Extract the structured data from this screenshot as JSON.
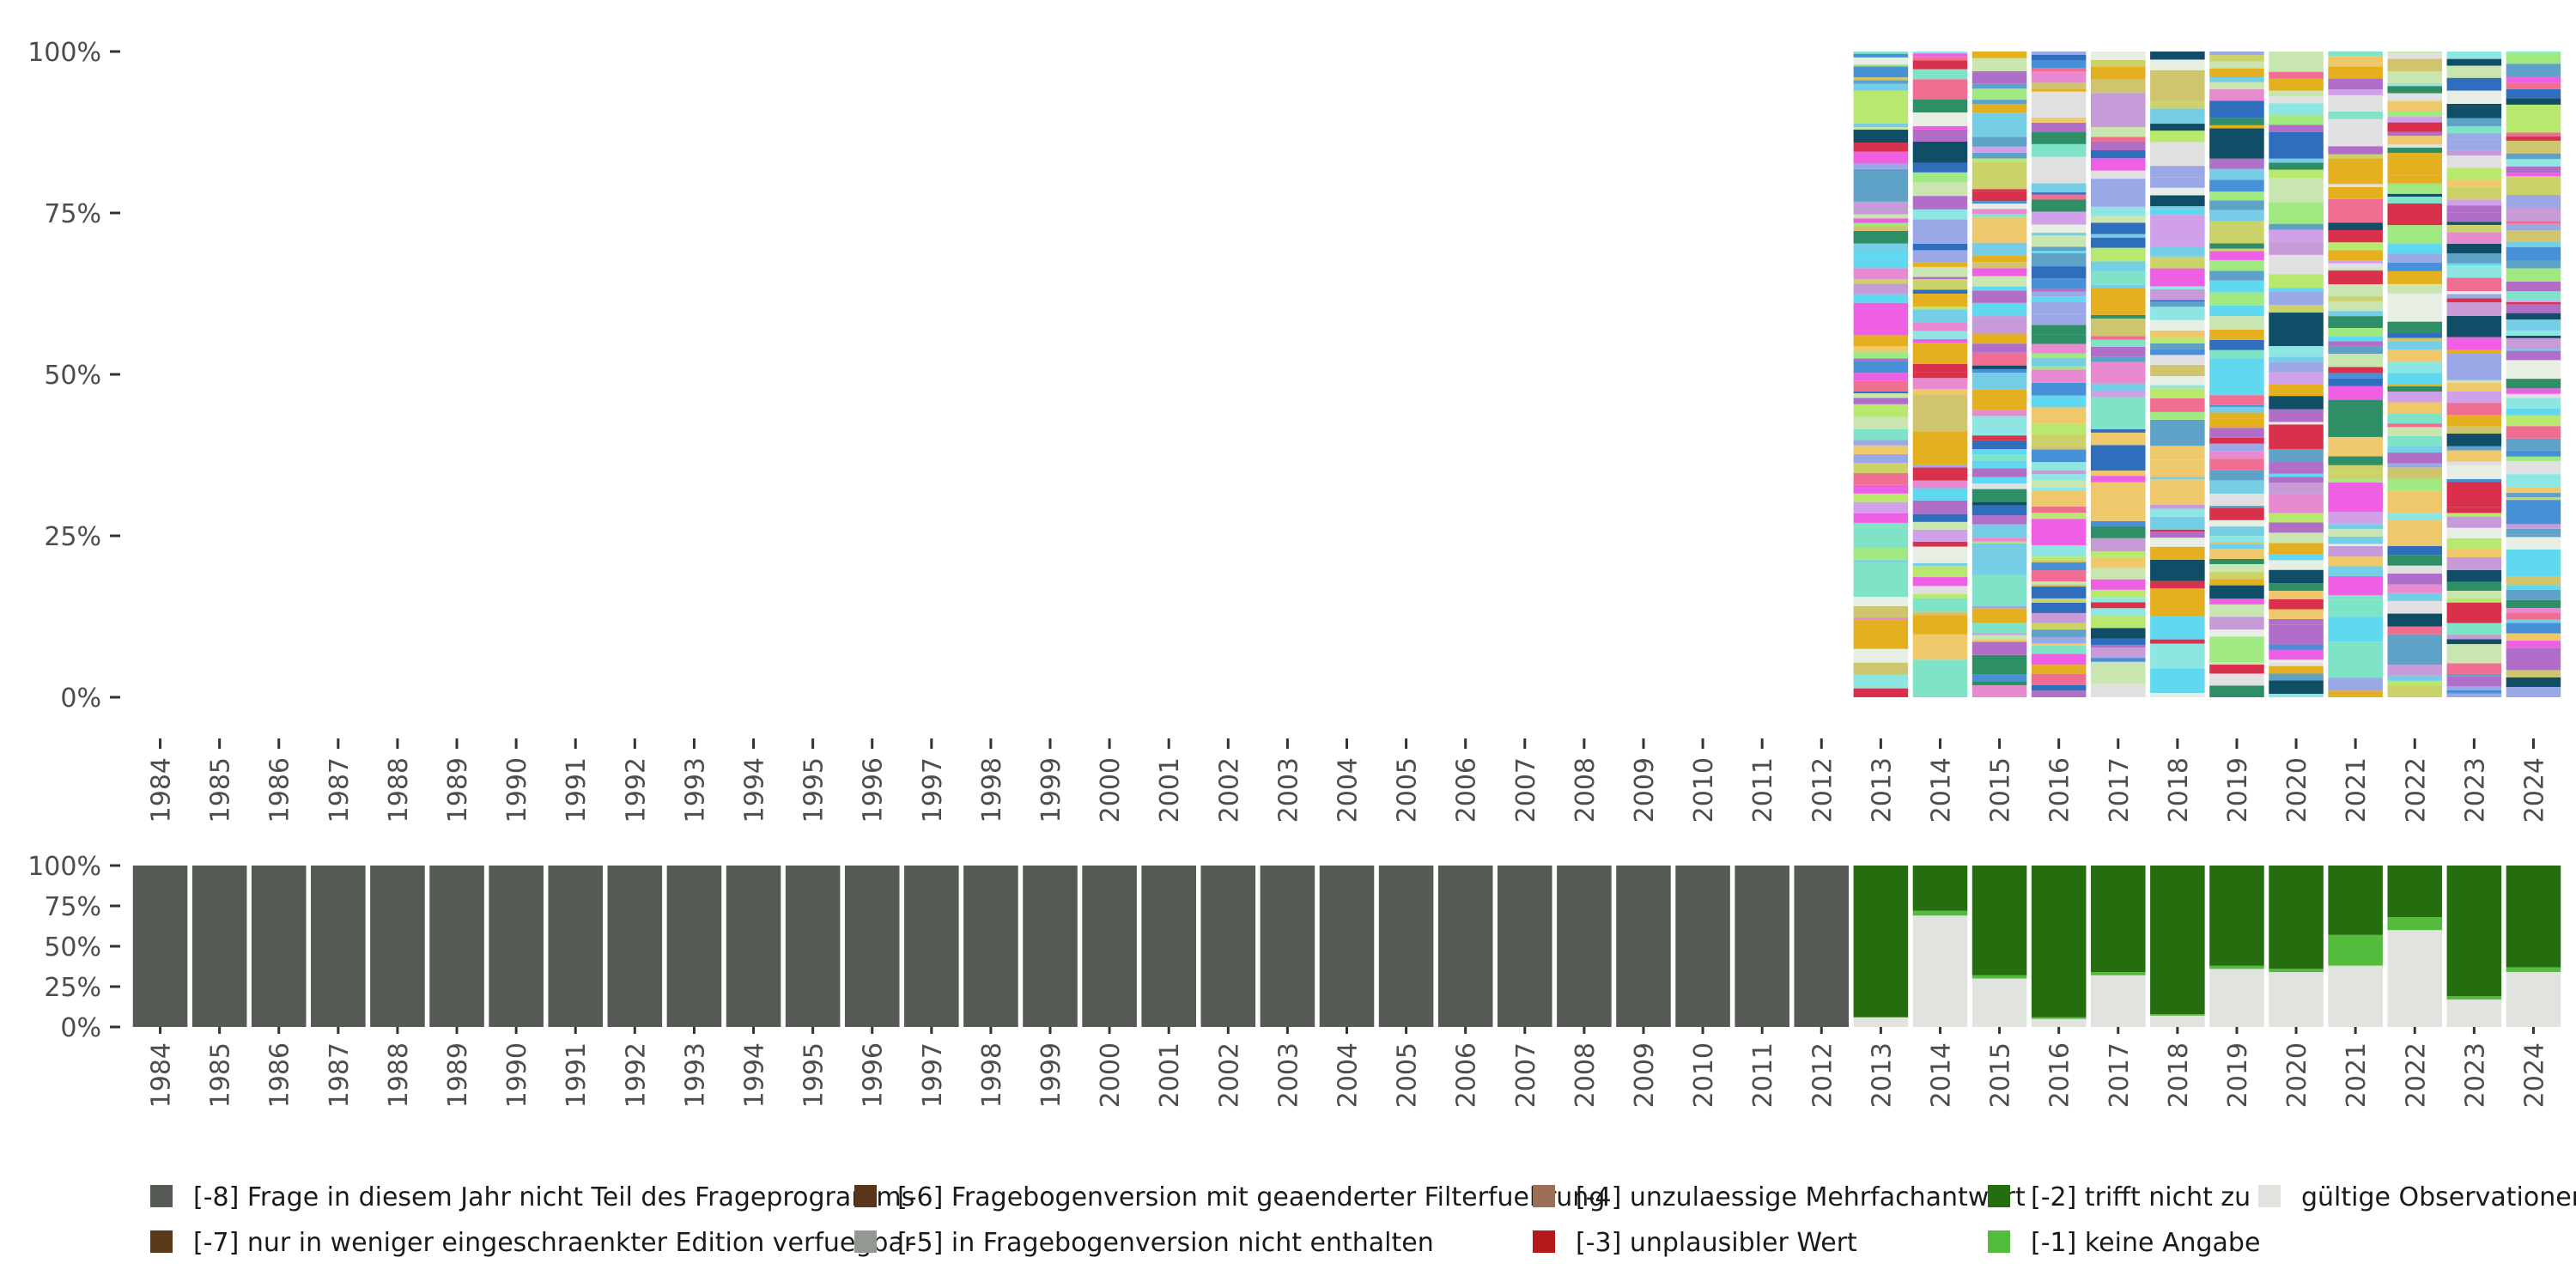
{
  "chart_data": [
    {
      "type": "stacked-bar",
      "y_tick_labels": [
        "0%",
        "25%",
        "50%",
        "75%",
        "100%"
      ],
      "ylim": [
        0,
        100
      ],
      "categories": [
        "1984",
        "1985",
        "1986",
        "1987",
        "1988",
        "1989",
        "1990",
        "1991",
        "1992",
        "1993",
        "1994",
        "1995",
        "1996",
        "1997",
        "1998",
        "1999",
        "2000",
        "2001",
        "2002",
        "2003",
        "2004",
        "2005",
        "2006",
        "2007",
        "2008",
        "2009",
        "2010",
        "2011",
        "2012",
        "2013",
        "2014",
        "2015",
        "2016",
        "2017",
        "2018",
        "2019",
        "2020",
        "2021",
        "2022",
        "2023",
        "2024"
      ],
      "bars_present_from": "2013",
      "note_bars": "many thin colored segments for 2013-2024, each bar sums to 100%"
    },
    {
      "type": "stacked-bar",
      "y_tick_labels": [
        "0%",
        "25%",
        "50%",
        "75%",
        "100%"
      ],
      "ylim": [
        0,
        100
      ],
      "categories": [
        "1984",
        "1985",
        "1986",
        "1987",
        "1988",
        "1989",
        "1990",
        "1991",
        "1992",
        "1993",
        "1994",
        "1995",
        "1996",
        "1997",
        "1998",
        "1999",
        "2000",
        "2001",
        "2002",
        "2003",
        "2004",
        "2005",
        "2006",
        "2007",
        "2008",
        "2009",
        "2010",
        "2011",
        "2012",
        "2013",
        "2014",
        "2015",
        "2016",
        "2017",
        "2018",
        "2019",
        "2020",
        "2021",
        "2022",
        "2023",
        "2024"
      ],
      "series": [
        {
          "name": "[-8] Frage in diesem Jahr nicht Teil des Frageprogramms",
          "color": "#555a54",
          "values": [
            100,
            100,
            100,
            100,
            100,
            100,
            100,
            100,
            100,
            100,
            100,
            100,
            100,
            100,
            100,
            100,
            100,
            100,
            100,
            100,
            100,
            100,
            100,
            100,
            100,
            100,
            100,
            100,
            100,
            0,
            0,
            0,
            0,
            0,
            0,
            0,
            0,
            0,
            0,
            0,
            0
          ]
        },
        {
          "name": "gültige Observationen",
          "color": "#e0e3de",
          "values": [
            0,
            0,
            0,
            0,
            0,
            0,
            0,
            0,
            0,
            0,
            0,
            0,
            0,
            0,
            0,
            0,
            0,
            0,
            0,
            0,
            0,
            0,
            0,
            0,
            0,
            0,
            0,
            0,
            0,
            6,
            69,
            30,
            5,
            32,
            7,
            36,
            34,
            38,
            60,
            17,
            34
          ]
        },
        {
          "name": "[-1] keine Angabe",
          "color": "#54bc3c",
          "values": [
            0,
            0,
            0,
            0,
            0,
            0,
            0,
            0,
            0,
            0,
            0,
            0,
            0,
            0,
            0,
            0,
            0,
            0,
            0,
            0,
            0,
            0,
            0,
            0,
            0,
            0,
            0,
            0,
            0,
            0,
            3,
            2,
            1,
            2,
            1,
            2,
            2,
            19,
            8,
            2,
            3
          ]
        },
        {
          "name": "[-2] trifft nicht zu",
          "color": "#246e10",
          "values": [
            0,
            0,
            0,
            0,
            0,
            0,
            0,
            0,
            0,
            0,
            0,
            0,
            0,
            0,
            0,
            0,
            0,
            0,
            0,
            0,
            0,
            0,
            0,
            0,
            0,
            0,
            0,
            0,
            0,
            94,
            28,
            68,
            94,
            66,
            92,
            62,
            64,
            43,
            32,
            81,
            63
          ]
        }
      ]
    }
  ],
  "legend": [
    {
      "label": "[-8] Frage in diesem Jahr nicht Teil des Frageprogramms",
      "color": "#555a54"
    },
    {
      "label": "[-7] nur in weniger eingeschraenkter Edition verfuegbar",
      "color": "#5a3a1a"
    },
    {
      "label": "[-6] Fragebogenversion mit geaenderter Filterfuehrung",
      "color": "#5c3419"
    },
    {
      "label": "[-5] in Fragebogenversion nicht enthalten",
      "color": "#929892"
    },
    {
      "label": "[-4] unzulaessige Mehrfachantwort",
      "color": "#9b6f55"
    },
    {
      "label": "[-3] unplausibler Wert",
      "color": "#b5191b"
    },
    {
      "label": "[-2] trifft nicht zu",
      "color": "#246e10"
    },
    {
      "label": "[-1] keine Angabe",
      "color": "#54bc3c"
    },
    {
      "label": "gültige Observationen",
      "color": "#e0e3de"
    }
  ],
  "palette_top": [
    "#e5b020",
    "#cfc56e",
    "#9aa8e8",
    "#7fe3c8",
    "#2e8e66",
    "#e7efe4",
    "#c79ad8",
    "#ee5fe4",
    "#5fa2c7",
    "#f06e92",
    "#ccd26a",
    "#f0c86c",
    "#b9e86e",
    "#8ee6e2",
    "#d9304c",
    "#4790d8",
    "#c9e6b1",
    "#b06ec8",
    "#e0e0e0",
    "#76cee6",
    "#2f6ebc",
    "#a0e880",
    "#d0a0e8",
    "#60d8f0",
    "#e88ad0",
    "#0f4e66"
  ]
}
